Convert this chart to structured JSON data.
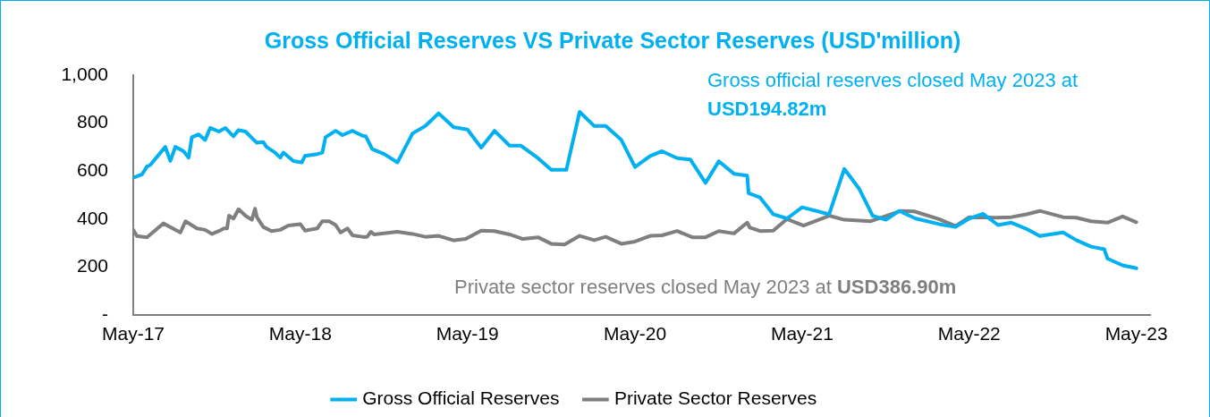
{
  "chart_data": {
    "type": "line",
    "title": "Gross Official Reserves VS Private Sector Reserves (USD'million)",
    "xlim": [
      "2017-05-01",
      "2023-05-31"
    ],
    "xticks": [
      {
        "value": "2017-05-01",
        "label": "May-17"
      },
      {
        "value": "2018-05-01",
        "label": "May-18"
      },
      {
        "value": "2019-05-01",
        "label": "May-19"
      },
      {
        "value": "2020-05-01",
        "label": "May-20"
      },
      {
        "value": "2021-05-01",
        "label": "May-21"
      },
      {
        "value": "2022-05-01",
        "label": "May-22"
      },
      {
        "value": "2023-05-01",
        "label": "May-23"
      }
    ],
    "ylim": [
      0,
      1000
    ],
    "yticks": [
      {
        "value": 0,
        "label": "-"
      },
      200,
      400,
      600,
      800,
      {
        "value": 1000,
        "label": "1,000"
      }
    ],
    "grid": false,
    "legend": "bottom",
    "marker": "none",
    "line_style": "solid",
    "annotations": [
      "Gross official reserves closed May 2023 at",
      "USD194.82m",
      "Private sector reserves closed May 2023 at",
      "USD386.90m"
    ],
    "series": [
      {
        "name": "Gross Official Reserves",
        "color": "#00b0f0",
        "x": [
          "2017-05-01",
          "2017-05-20",
          "2017-05-31",
          "2017-06-07",
          "2017-07-10",
          "2017-07-21",
          "2017-08-01",
          "2017-08-19",
          "2017-08-30",
          "2017-09-06",
          "2017-09-21",
          "2017-10-05",
          "2017-10-16",
          "2017-11-04",
          "2017-11-18",
          "2017-12-06",
          "2017-12-17",
          "2018-01-01",
          "2018-01-26",
          "2018-02-09",
          "2018-02-16",
          "2018-03-07",
          "2018-03-18",
          "2018-03-25",
          "2018-04-16",
          "2018-05-04",
          "2018-05-11",
          "2018-06-07",
          "2018-06-18",
          "2018-06-25",
          "2018-07-17",
          "2018-08-01",
          "2018-08-23",
          "2018-09-14",
          "2018-09-21",
          "2018-10-05",
          "2018-10-31",
          "2018-11-29",
          "2019-01-01",
          "2019-01-29",
          "2019-02-27",
          "2019-04-01",
          "2019-05-01",
          "2019-05-31",
          "2019-06-29",
          "2019-08-01",
          "2019-08-26",
          "2019-10-02",
          "2019-10-31",
          "2019-12-03",
          "2020-01-01",
          "2020-02-02",
          "2020-02-27",
          "2020-04-01",
          "2020-05-01",
          "2020-06-03",
          "2020-06-29",
          "2020-08-01",
          "2020-08-30",
          "2020-10-02",
          "2020-10-31",
          "2020-12-03",
          "2021-01-01",
          "2021-01-04",
          "2021-01-29",
          "2021-02-27",
          "2021-03-29",
          "2021-05-01",
          "2021-06-29",
          "2021-08-01",
          "2021-09-03",
          "2021-10-02",
          "2021-10-31",
          "2021-11-29",
          "2022-01-04",
          "2022-02-24",
          "2022-04-01",
          "2022-05-01",
          "2022-05-31",
          "2022-07-03",
          "2022-08-01",
          "2022-09-03",
          "2022-10-02",
          "2022-11-22",
          "2022-12-21",
          "2023-01-22",
          "2023-02-20",
          "2023-02-27",
          "2023-04-01",
          "2023-05-01"
        ],
        "values": [
          572,
          586,
          619,
          625,
          701,
          642,
          701,
          683,
          656,
          741,
          753,
          730,
          780,
          765,
          780,
          745,
          771,
          765,
          718,
          721,
          701,
          677,
          656,
          677,
          642,
          636,
          663,
          671,
          677,
          741,
          768,
          750,
          768,
          747,
          745,
          692,
          671,
          636,
          757,
          788,
          841,
          783,
          773,
          698,
          768,
          706,
          706,
          654,
          605,
          605,
          847,
          788,
          788,
          730,
          617,
          663,
          683,
          654,
          648,
          551,
          641,
          589,
          581,
          508,
          490,
          420,
          402,
          449,
          420,
          609,
          525,
          414,
          397,
          434,
          402,
          379,
          367,
          402,
          422,
          375,
          385,
          359,
          329,
          344,
          312,
          285,
          274,
          235,
          207,
          195
        ]
      },
      {
        "name": "Private Sector Reserves",
        "color": "#7f7f7f",
        "x": [
          "2017-05-01",
          "2017-05-09",
          "2017-05-31",
          "2017-07-06",
          "2017-07-28",
          "2017-08-12",
          "2017-08-23",
          "2017-09-17",
          "2017-10-05",
          "2017-10-20",
          "2017-11-04",
          "2017-11-15",
          "2017-11-22",
          "2017-11-26",
          "2017-12-06",
          "2017-12-17",
          "2018-01-01",
          "2018-01-15",
          "2018-01-22",
          "2018-01-26",
          "2018-02-09",
          "2018-02-27",
          "2018-03-18",
          "2018-04-05",
          "2018-05-01",
          "2018-05-11",
          "2018-06-07",
          "2018-06-18",
          "2018-07-03",
          "2018-07-17",
          "2018-07-28",
          "2018-08-12",
          "2018-08-23",
          "2018-09-14",
          "2018-09-24",
          "2018-10-02",
          "2018-10-09",
          "2018-11-29",
          "2019-01-01",
          "2019-01-29",
          "2019-02-27",
          "2019-04-01",
          "2019-04-27",
          "2019-05-31",
          "2019-06-29",
          "2019-08-01",
          "2019-08-30",
          "2019-10-02",
          "2019-10-31",
          "2019-11-29",
          "2020-01-01",
          "2020-02-02",
          "2020-02-27",
          "2020-04-01",
          "2020-05-01",
          "2020-06-03",
          "2020-06-29",
          "2020-08-01",
          "2020-09-03",
          "2020-10-02",
          "2020-10-31",
          "2020-12-03",
          "2021-01-01",
          "2021-01-07",
          "2021-01-29",
          "2021-02-27",
          "2021-03-29",
          "2021-05-04",
          "2021-06-29",
          "2021-08-01",
          "2021-09-28",
          "2021-12-03",
          "2022-01-01",
          "2022-02-24",
          "2022-04-01",
          "2022-05-01",
          "2022-06-29",
          "2022-08-01",
          "2022-09-03",
          "2022-10-02",
          "2022-11-22",
          "2022-12-21",
          "2023-01-22",
          "2023-02-27",
          "2023-04-01",
          "2023-05-01"
        ],
        "values": [
          355,
          329,
          324,
          382,
          359,
          344,
          391,
          361,
          355,
          338,
          350,
          361,
          361,
          414,
          402,
          441,
          414,
          397,
          443,
          408,
          367,
          350,
          355,
          373,
          379,
          352,
          361,
          391,
          391,
          375,
          344,
          361,
          332,
          326,
          326,
          347,
          336,
          347,
          338,
          326,
          330,
          311,
          317,
          352,
          350,
          336,
          317,
          324,
          297,
          294,
          330,
          312,
          326,
          297,
          306,
          330,
          332,
          350,
          324,
          324,
          350,
          340,
          385,
          364,
          350,
          352,
          400,
          373,
          414,
          397,
          391,
          434,
          432,
          400,
          371,
          408,
          406,
          408,
          420,
          434,
          408,
          406,
          391,
          385,
          411,
          387
        ]
      }
    ]
  }
}
